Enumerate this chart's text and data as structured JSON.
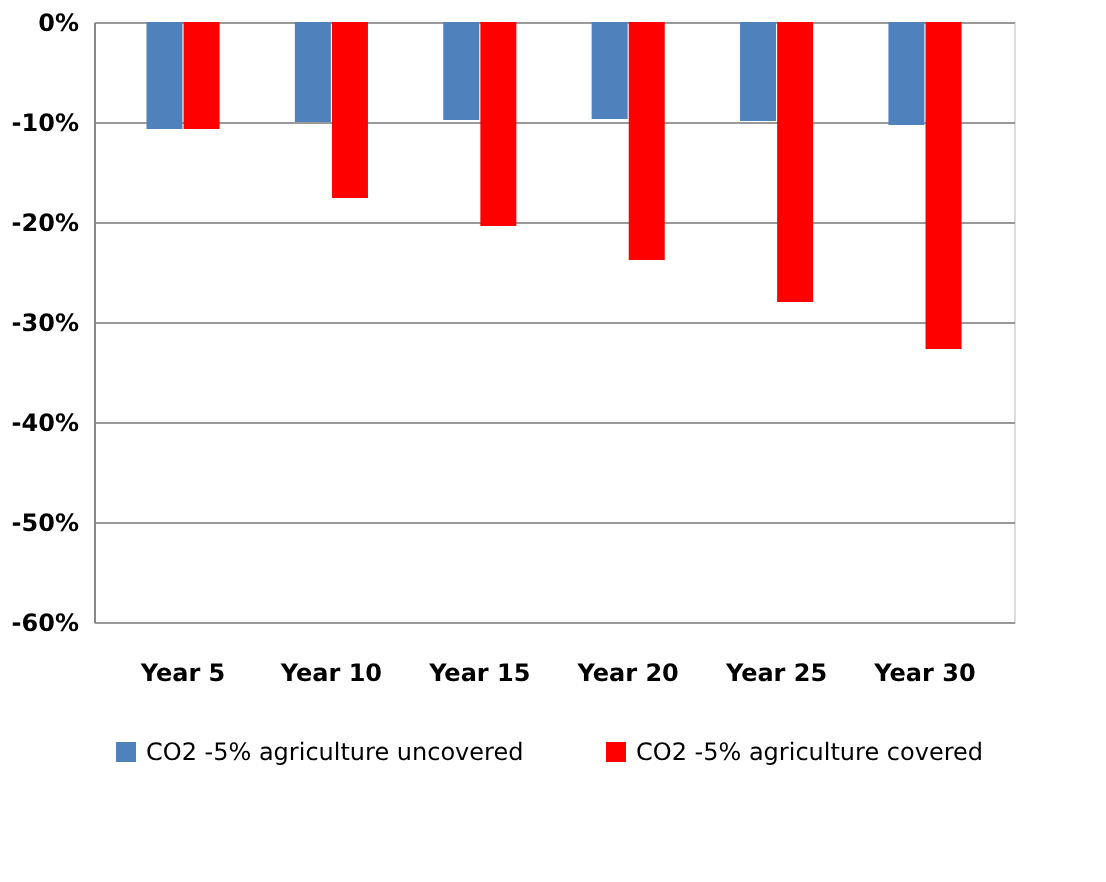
{
  "chart_data": {
    "type": "bar",
    "categories": [
      "Year 5",
      "Year 10",
      "Year 15",
      "Year 20",
      "Year 25",
      "Year 30"
    ],
    "series": [
      {
        "name": "CO2 -5% agriculture uncovered",
        "color": "#4f81bd",
        "values": [
          -10.7,
          -10.0,
          -9.8,
          -9.7,
          -9.9,
          -10.3
        ]
      },
      {
        "name": "CO2 -5% agriculture covered",
        "color": "#ff0000",
        "values": [
          -10.7,
          -17.6,
          -20.4,
          -23.8,
          -28.0,
          -32.7
        ]
      }
    ],
    "ylim": [
      -60,
      0
    ],
    "yticks": [
      {
        "value": 0,
        "label": "0%"
      },
      {
        "value": -10,
        "label": "-10%"
      },
      {
        "value": -20,
        "label": "-20%"
      },
      {
        "value": -30,
        "label": "-30%"
      },
      {
        "value": -40,
        "label": "-40%"
      },
      {
        "value": -50,
        "label": "-50%"
      },
      {
        "value": -60,
        "label": "-60%"
      }
    ],
    "grid": "y",
    "legend": "bottom"
  }
}
